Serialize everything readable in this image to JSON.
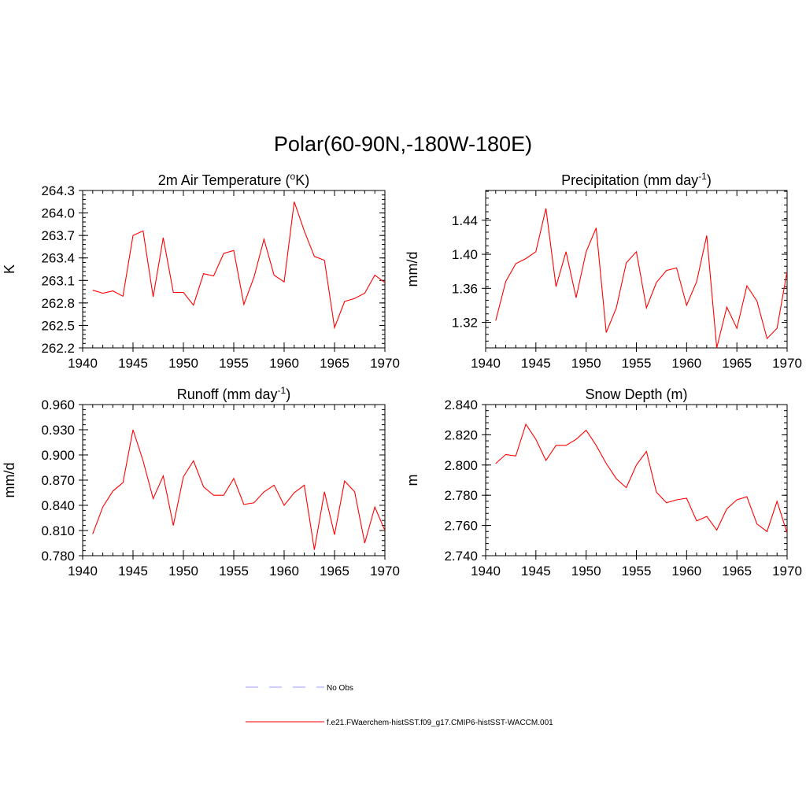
{
  "title": "Polar(60-90N,-180W-180E)",
  "chart_data": [
    {
      "type": "line",
      "title": "2m Air Temperature (°K)",
      "title_main": "2m Air Temperature (",
      "title_sup": "o",
      "title_end": "K)",
      "ylabel": "K",
      "xlim": [
        1940,
        1970
      ],
      "ylim": [
        262.2,
        264.3
      ],
      "yticks": [
        "264.3",
        "264.0",
        "263.7",
        "263.4",
        "263.1",
        "262.8",
        "262.5",
        "262.2"
      ],
      "xticks": [
        "1940",
        "1945",
        "1950",
        "1955",
        "1960",
        "1965",
        "1970"
      ],
      "series": [
        {
          "color": "#ff0000",
          "x": [
            1941,
            1942,
            1943,
            1944,
            1945,
            1946,
            1947,
            1948,
            1949,
            1950,
            1951,
            1952,
            1953,
            1954,
            1955,
            1956,
            1957,
            1958,
            1959,
            1960,
            1961,
            1962,
            1963,
            1964,
            1965,
            1966,
            1967,
            1968,
            1969,
            1970
          ],
          "values": [
            262.97,
            262.93,
            262.96,
            262.89,
            263.7,
            263.76,
            262.88,
            263.67,
            262.94,
            262.94,
            262.77,
            263.19,
            263.16,
            263.46,
            263.5,
            262.78,
            263.14,
            263.65,
            263.17,
            263.08,
            264.15,
            263.76,
            263.42,
            263.37,
            262.47,
            262.82,
            262.86,
            262.93,
            263.17,
            263.07
          ]
        }
      ]
    },
    {
      "type": "line",
      "title": "Precipitation (mm day-1)",
      "title_main": "Precipitation (mm day",
      "title_sup": "-1",
      "title_end": ")",
      "ylabel": "mm/d",
      "xlim": [
        1940,
        1970
      ],
      "ylim": [
        1.29,
        1.475
      ],
      "yticks": [
        "1.44",
        "1.40",
        "1.36",
        "1.32"
      ],
      "ytick_values": [
        1.44,
        1.4,
        1.36,
        1.32
      ],
      "xticks": [
        "1940",
        "1945",
        "1950",
        "1955",
        "1960",
        "1965",
        "1970"
      ],
      "series": [
        {
          "color": "#ff0000",
          "x": [
            1941,
            1942,
            1943,
            1944,
            1945,
            1946,
            1947,
            1948,
            1949,
            1950,
            1951,
            1952,
            1953,
            1954,
            1955,
            1956,
            1957,
            1958,
            1959,
            1960,
            1961,
            1962,
            1963,
            1964,
            1965,
            1966,
            1967,
            1968,
            1969,
            1970
          ],
          "values": [
            1.322,
            1.368,
            1.389,
            1.395,
            1.403,
            1.454,
            1.362,
            1.403,
            1.349,
            1.403,
            1.431,
            1.308,
            1.337,
            1.39,
            1.403,
            1.337,
            1.367,
            1.381,
            1.384,
            1.34,
            1.368,
            1.422,
            1.29,
            1.338,
            1.313,
            1.363,
            1.345,
            1.301,
            1.313,
            1.38
          ]
        }
      ]
    },
    {
      "type": "line",
      "title": "Runoff (mm day-1)",
      "title_main": "Runoff (mm day",
      "title_sup": "-1",
      "title_end": ")",
      "ylabel": "mm/d",
      "xlim": [
        1940,
        1970
      ],
      "ylim": [
        0.78,
        0.96
      ],
      "yticks": [
        "0.960",
        "0.930",
        "0.900",
        "0.870",
        "0.840",
        "0.810",
        "0.780"
      ],
      "xticks": [
        "1940",
        "1945",
        "1950",
        "1955",
        "1960",
        "1965",
        "1970"
      ],
      "series": [
        {
          "color": "#ff0000",
          "x": [
            1941,
            1942,
            1943,
            1944,
            1945,
            1946,
            1947,
            1948,
            1949,
            1950,
            1951,
            1952,
            1953,
            1954,
            1955,
            1956,
            1957,
            1958,
            1959,
            1960,
            1961,
            1962,
            1963,
            1964,
            1965,
            1966,
            1967,
            1968,
            1969,
            1970
          ],
          "values": [
            0.806,
            0.838,
            0.857,
            0.867,
            0.93,
            0.893,
            0.848,
            0.875,
            0.816,
            0.874,
            0.893,
            0.862,
            0.852,
            0.852,
            0.872,
            0.841,
            0.843,
            0.856,
            0.864,
            0.84,
            0.855,
            0.864,
            0.787,
            0.856,
            0.805,
            0.869,
            0.856,
            0.795,
            0.838,
            0.81
          ]
        }
      ]
    },
    {
      "type": "line",
      "title": "Snow Depth (m)",
      "title_main": "Snow Depth (m)",
      "title_sup": "",
      "title_end": "",
      "ylabel": "m",
      "xlim": [
        1940,
        1970
      ],
      "ylim": [
        2.74,
        2.84
      ],
      "yticks": [
        "2.840",
        "2.820",
        "2.800",
        "2.780",
        "2.760",
        "2.740"
      ],
      "xticks": [
        "1940",
        "1945",
        "1950",
        "1955",
        "1960",
        "1965",
        "1970"
      ],
      "series": [
        {
          "color": "#ff0000",
          "x": [
            1941,
            1942,
            1943,
            1944,
            1945,
            1946,
            1947,
            1948,
            1949,
            1950,
            1951,
            1952,
            1953,
            1954,
            1955,
            1956,
            1957,
            1958,
            1959,
            1960,
            1961,
            1962,
            1963,
            1964,
            1965,
            1966,
            1967,
            1968,
            1969,
            1970
          ],
          "values": [
            2.801,
            2.807,
            2.806,
            2.827,
            2.817,
            2.803,
            2.813,
            2.813,
            2.817,
            2.823,
            2.813,
            2.801,
            2.791,
            2.785,
            2.8,
            2.809,
            2.782,
            2.775,
            2.777,
            2.778,
            2.763,
            2.766,
            2.757,
            2.771,
            2.777,
            2.779,
            2.761,
            2.756,
            2.776,
            2.755
          ]
        }
      ]
    }
  ],
  "legend": [
    {
      "label": "No Obs",
      "color": "#9999ff",
      "style": "dashed"
    },
    {
      "label": "f.e21.FWaerchem-histSST.f09_g17.CMIP6-histSST-WACCM.001",
      "color": "#ff0000",
      "style": "solid"
    }
  ]
}
